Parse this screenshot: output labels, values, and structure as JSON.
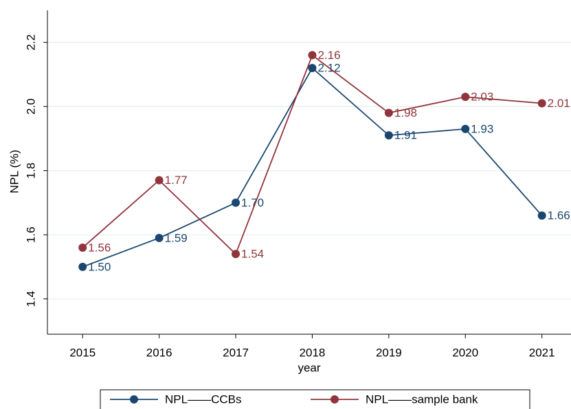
{
  "chart_data": {
    "type": "line",
    "ylabel": "NPL (%)",
    "xlabel": "year",
    "x": [
      2015,
      2016,
      2017,
      2018,
      2019,
      2020,
      2021
    ],
    "series": [
      {
        "name": "NPL——CCBs",
        "color": "#1a476f",
        "values": [
          1.5,
          1.59,
          1.7,
          2.12,
          1.91,
          1.93,
          1.66
        ],
        "value_labels": [
          "1.50",
          "1.59",
          "1.70",
          "2.12",
          "1.91",
          "1.93",
          "1.66"
        ]
      },
      {
        "name": "NPL——sample bank",
        "color": "#90353b",
        "values": [
          1.56,
          1.77,
          1.54,
          2.16,
          1.98,
          2.03,
          2.01
        ],
        "value_labels": [
          "1.56",
          "1.77",
          "1.54",
          "2.16",
          "1.98",
          "2.03",
          "2.01"
        ]
      }
    ],
    "xlim": [
      2014.54,
      2021.38
    ],
    "xticks": [
      2015,
      2016,
      2017,
      2018,
      2019,
      2020,
      2021
    ],
    "ylim": [
      1.29,
      2.3
    ],
    "yticks": [
      1.4,
      1.6,
      1.8,
      {
        "value": 2,
        "label": "2.0"
      },
      2.2
    ],
    "grid": true,
    "legend": "bottom"
  }
}
